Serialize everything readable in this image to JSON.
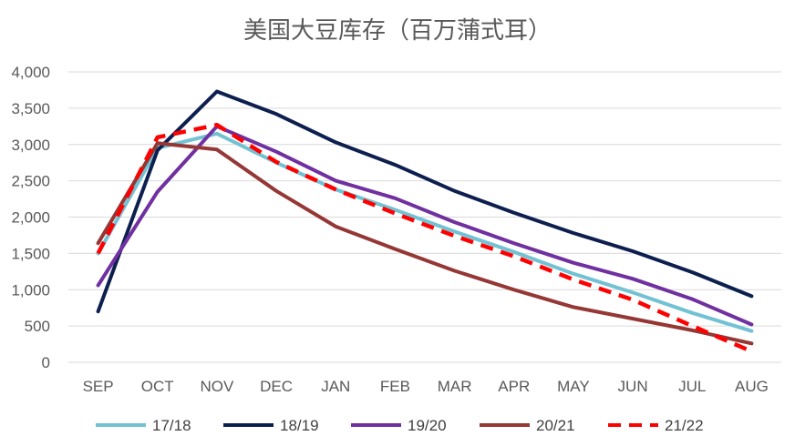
{
  "chart_data": {
    "type": "line",
    "title": "美国大豆库存（百万蒲式耳）",
    "xlabel": "",
    "ylabel": "",
    "categories": [
      "SEP",
      "OCT",
      "NOV",
      "DEC",
      "JAN",
      "FEB",
      "MAR",
      "APR",
      "MAY",
      "JUN",
      "JUL",
      "AUG"
    ],
    "ylim": [
      0,
      4000
    ],
    "yticks": [
      0,
      500,
      1000,
      1500,
      2000,
      2500,
      3000,
      3500,
      4000
    ],
    "ytick_labels": [
      "0",
      "500",
      "1,000",
      "1,500",
      "2,000",
      "2,500",
      "3,000",
      "3,500",
      "4,000"
    ],
    "grid": true,
    "legend_position": "bottom",
    "series": [
      {
        "name": "17/18",
        "color": "#72c2d4",
        "dashed": false,
        "values": [
          1500,
          2950,
          3150,
          2750,
          2380,
          2100,
          1800,
          1520,
          1220,
          960,
          680,
          430
        ]
      },
      {
        "name": "18/19",
        "color": "#0d1f4f",
        "dashed": false,
        "values": [
          700,
          2920,
          3730,
          3420,
          3030,
          2720,
          2360,
          2060,
          1780,
          1530,
          1240,
          910
        ]
      },
      {
        "name": "19/20",
        "color": "#7030a0",
        "dashed": false,
        "values": [
          1060,
          2350,
          3250,
          2900,
          2500,
          2260,
          1930,
          1640,
          1370,
          1150,
          870,
          520
        ]
      },
      {
        "name": "20/21",
        "color": "#953735",
        "dashed": false,
        "values": [
          1640,
          3020,
          2930,
          2360,
          1870,
          1560,
          1260,
          1000,
          760,
          600,
          440,
          260
        ]
      },
      {
        "name": "21/22",
        "color": "#ff0000",
        "dashed": true,
        "values": [
          1500,
          3100,
          3270,
          2760,
          2380,
          2050,
          1740,
          1460,
          1140,
          860,
          500,
          150
        ]
      }
    ]
  }
}
